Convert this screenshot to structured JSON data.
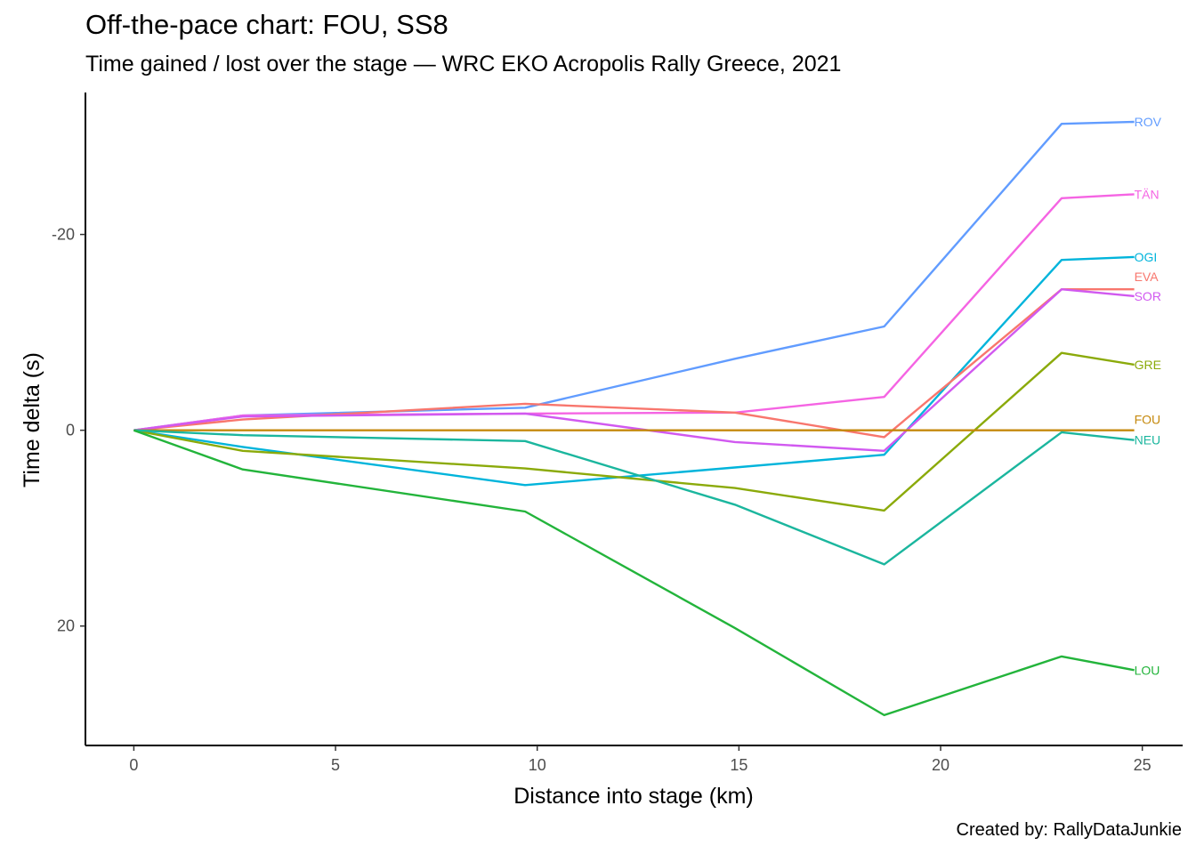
{
  "title": "Off-the-pace chart: FOU, SS8",
  "subtitle": "Time gained / lost over the stage — WRC EKO Acropolis Rally Greece, 2021",
  "caption": "Created by: RallyDataJunkie",
  "chart_data": {
    "type": "line",
    "title": "Off-the-pace chart: FOU, SS8",
    "subtitle": "Time gained / lost over the stage — WRC EKO Acropolis Rally Greece, 2021",
    "xlabel": "Distance into stage (km)",
    "ylabel": "Time delta (s)",
    "y_reversed": true,
    "xlim": [
      -1.2,
      26.0
    ],
    "ylim": [
      -34.5,
      32.2
    ],
    "x_ticks": [
      0,
      5,
      10,
      15,
      20,
      25
    ],
    "y_ticks": [
      -20,
      0,
      20
    ],
    "grid": false,
    "legend": "direct labels at line ends",
    "x": [
      0,
      2.7,
      9.7,
      14.9,
      18.6,
      23.0,
      24.8
    ],
    "series": [
      {
        "name": "ROV",
        "color": "#619CFF",
        "values": [
          0,
          -1.5,
          -2.3,
          -7.3,
          -10.6,
          -31.3,
          -31.5
        ]
      },
      {
        "name": "TÄN",
        "color": "#F564E3",
        "values": [
          0,
          -1.5,
          -1.7,
          -1.8,
          -3.4,
          -23.7,
          -24.1
        ]
      },
      {
        "name": "OGI",
        "color": "#00B4DB",
        "values": [
          0,
          1.7,
          5.6,
          3.8,
          2.5,
          -17.4,
          -17.7
        ]
      },
      {
        "name": "EVA",
        "color": "#F8766D",
        "values": [
          0,
          -1.1,
          -2.7,
          -1.8,
          0.7,
          -14.4,
          -14.4
        ]
      },
      {
        "name": "SOR",
        "color": "#D159F0",
        "values": [
          0,
          -1.4,
          -1.7,
          1.2,
          2.1,
          -14.4,
          -13.7
        ]
      },
      {
        "name": "GRE",
        "color": "#8BAA0A",
        "values": [
          0,
          2.1,
          3.9,
          5.9,
          8.2,
          -7.9,
          -6.7
        ]
      },
      {
        "name": "FOU",
        "color": "#C5890D",
        "values": [
          0,
          0,
          0,
          0,
          0,
          0,
          0
        ]
      },
      {
        "name": "NEU",
        "color": "#1BB69E",
        "values": [
          0,
          0.5,
          1.1,
          7.6,
          13.7,
          0.2,
          1.0
        ]
      },
      {
        "name": "LOU",
        "color": "#23B43B",
        "values": [
          0,
          4.0,
          8.3,
          20.2,
          29.1,
          23.1,
          24.5
        ]
      }
    ]
  }
}
